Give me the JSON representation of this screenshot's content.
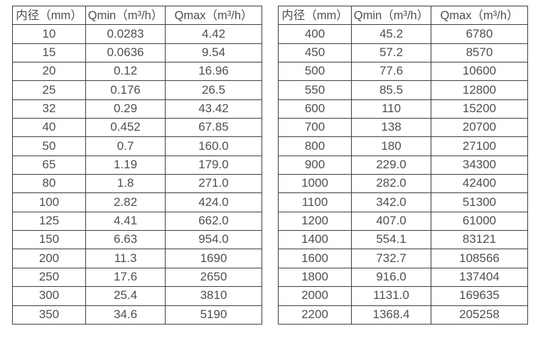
{
  "page": {
    "background": "#ffffff",
    "text_color": "#4f4f4f",
    "border_color": "#3f3f3f"
  },
  "tables": [
    {
      "name": "flow-range-table-small-diameters",
      "headers": [
        "内径（mm）",
        "Qmin（m³/h）",
        "Qmax（m³/h）"
      ],
      "rows": [
        [
          "10",
          "0.0283",
          "4.42"
        ],
        [
          "15",
          "0.0636",
          "9.54"
        ],
        [
          "20",
          "0.12",
          "16.96"
        ],
        [
          "25",
          "0.176",
          "26.5"
        ],
        [
          "32",
          "0.29",
          "43.42"
        ],
        [
          "40",
          "0.452",
          "67.85"
        ],
        [
          "50",
          "0.7",
          "160.0"
        ],
        [
          "65",
          "1.19",
          "179.0"
        ],
        [
          "80",
          "1.8",
          "271.0"
        ],
        [
          "100",
          "2.82",
          "424.0"
        ],
        [
          "125",
          "4.41",
          "662.0"
        ],
        [
          "150",
          "6.63",
          "954.0"
        ],
        [
          "200",
          "11.3",
          "1690"
        ],
        [
          "250",
          "17.6",
          "2650"
        ],
        [
          "300",
          "25.4",
          "3810"
        ],
        [
          "350",
          "34.6",
          "5190"
        ]
      ]
    },
    {
      "name": "flow-range-table-large-diameters",
      "headers": [
        "内径（mm）",
        "Qmin（m³/h）",
        "Qmax（m³/h）"
      ],
      "rows": [
        [
          "400",
          "45.2",
          "6780"
        ],
        [
          "450",
          "57.2",
          "8570"
        ],
        [
          "500",
          "77.6",
          "10600"
        ],
        [
          "550",
          "85.5",
          "12800"
        ],
        [
          "600",
          "110",
          "15200"
        ],
        [
          "700",
          "138",
          "20700"
        ],
        [
          "800",
          "180",
          "27100"
        ],
        [
          "900",
          "229.0",
          "34300"
        ],
        [
          "1000",
          "282.0",
          "42400"
        ],
        [
          "1100",
          "342.0",
          "51300"
        ],
        [
          "1200",
          "407.0",
          "61000"
        ],
        [
          "1400",
          "554.1",
          "83121"
        ],
        [
          "1600",
          "732.7",
          "108566"
        ],
        [
          "1800",
          "916.0",
          "137404"
        ],
        [
          "2000",
          "1131.0",
          "169635"
        ],
        [
          "2200",
          "1368.4",
          "205258"
        ]
      ]
    }
  ]
}
